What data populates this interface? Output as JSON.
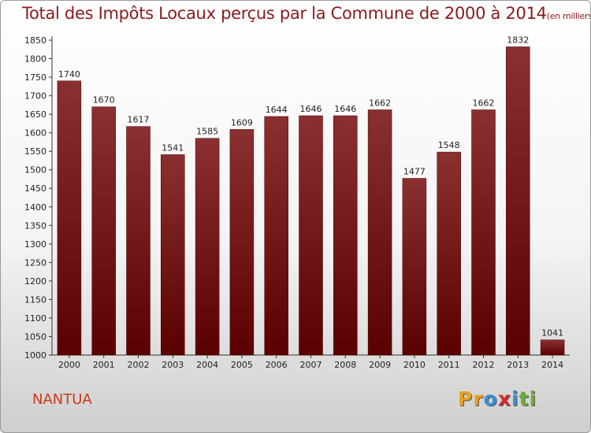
{
  "title": "Total des Impôts Locaux perçus par la Commune de 2000 à 2014",
  "unit": "(en milliers d'€)",
  "commune": "NANTUA",
  "logo": {
    "letters": [
      "P",
      "r",
      "o",
      "x",
      "i",
      "t",
      "i"
    ],
    "colors": [
      "#e8a020",
      "#e8a020",
      "#3a8fd0",
      "#d03030",
      "#3a8fd0",
      "#70b030",
      "#70b030"
    ]
  },
  "colors": {
    "bar_top": "#8a3030",
    "bar_bottom": "#5a0000",
    "title": "#8b1a1a"
  },
  "chart_data": {
    "type": "bar",
    "title": "Total des Impôts Locaux perçus par la Commune de 2000 à 2014",
    "categories": [
      "2000",
      "2001",
      "2002",
      "2003",
      "2004",
      "2005",
      "2006",
      "2007",
      "2008",
      "2009",
      "2010",
      "2011",
      "2012",
      "2013",
      "2014"
    ],
    "values": [
      1740,
      1670,
      1617,
      1541,
      1585,
      1609,
      1644,
      1646,
      1646,
      1662,
      1477,
      1548,
      1662,
      1832,
      1041
    ],
    "ylim": [
      1000,
      1850
    ],
    "yticks": [
      1000,
      1050,
      1100,
      1150,
      1200,
      1250,
      1300,
      1350,
      1400,
      1450,
      1500,
      1550,
      1600,
      1650,
      1700,
      1750,
      1800,
      1850
    ],
    "grid": false,
    "legend": "none"
  }
}
